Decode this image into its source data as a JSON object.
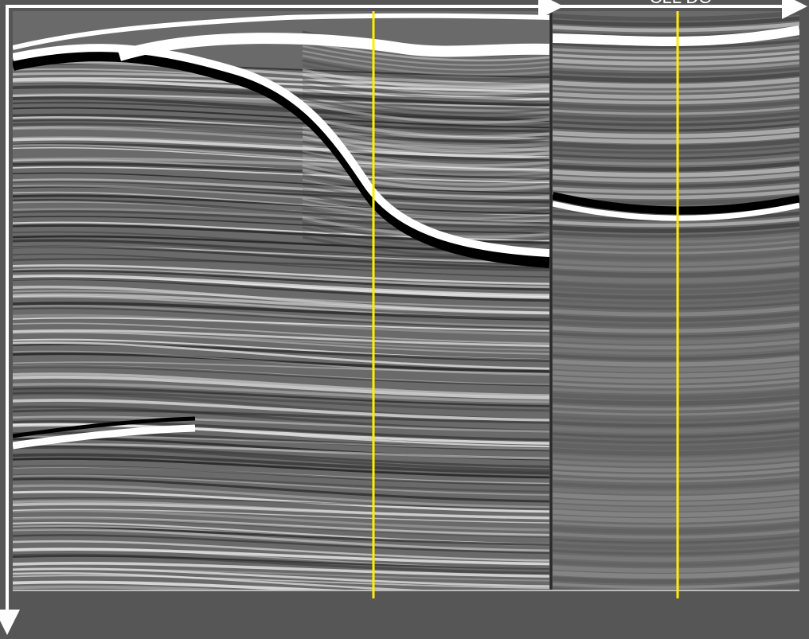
{
  "header_label": "CLL DO"
}
